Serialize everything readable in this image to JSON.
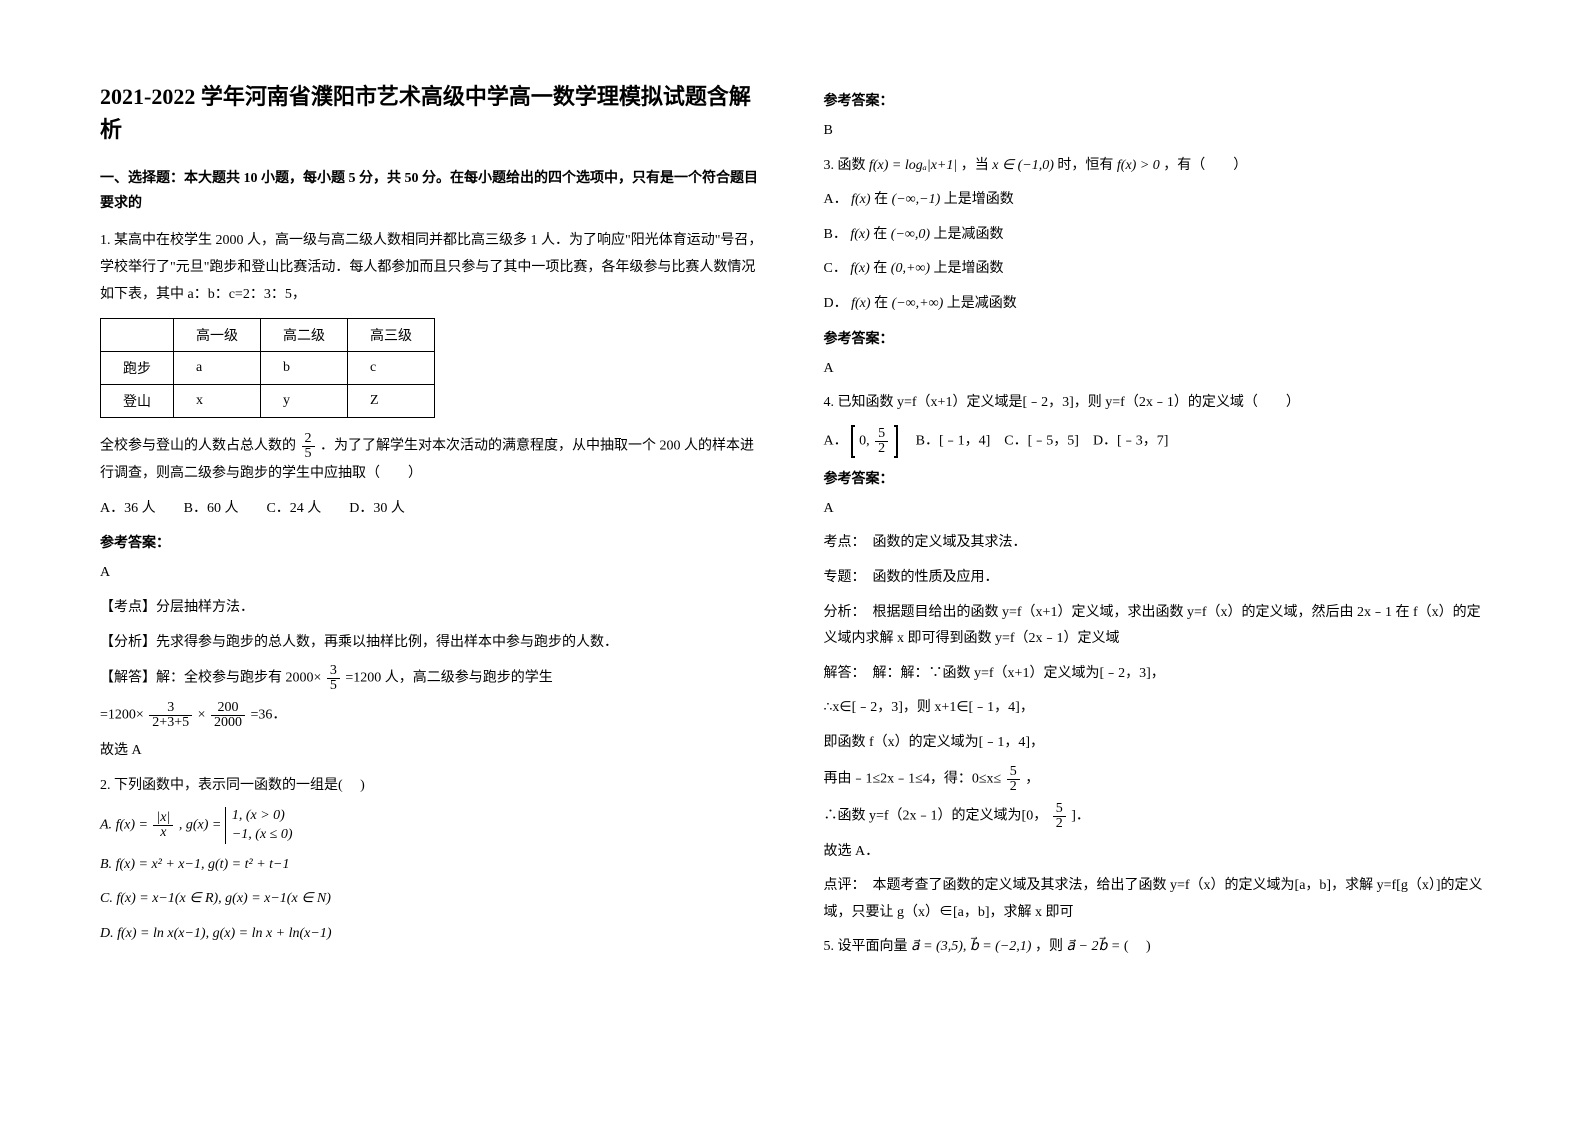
{
  "title": "2021-2022 学年河南省濮阳市艺术高级中学高一数学理模拟试题含解析",
  "sec1_hdr": "一、选择题：本大题共 10 小题，每小题 5 分，共 50 分。在每小题给出的四个选项中，只有是一个符合题目要求的",
  "q1": {
    "stem1": "1. 某高中在校学生 2000 人，高一级与高二级人数相同并都比高三级多 1 人．为了响应\"阳光体育运动\"号召，学校举行了\"元旦\"跑步和登山比赛活动．每人都参加而且只参与了其中一项比赛，各年级参与比赛人数情况如下表，其中 a：b：c=2：3：5，",
    "cols": [
      "",
      "高一级",
      "高二级",
      "高三级"
    ],
    "rows": [
      [
        "跑步",
        "a",
        "b",
        "c"
      ],
      [
        "登山",
        "x",
        "y",
        "Z"
      ]
    ],
    "stem2_a": "全校参与登山的人数占总人数的",
    "stem2_b": "．为了了解学生对本次活动的满意程度，从中抽取一个 200 人的样本进行调查，则高二级参与跑步的学生中应抽取（　　）",
    "opts": "A．36 人　　B．60 人　　C．24 人　　D．30 人",
    "ans_lbl": "参考答案：",
    "ans": "A",
    "kd": "【考点】分层抽样方法．",
    "fx": "【分析】先求得参与跑步的总人数，再乘以抽样比例，得出样本中参与跑步的人数．",
    "jd_a": "【解答】解：全校参与跑步有 2000×",
    "jd_b": "=1200 人，高二级参与跑步的学生",
    "jd_c": "=1200×",
    "jd_d": "×",
    "jd_e": "=36．",
    "jd_f": "故选 A"
  },
  "q2": {
    "stem": "2. 下列函数中，表示同一函数的一组是(　 )",
    "A1": "f(x) = ",
    "A2": ", g(x) = ",
    "B": "f(x) = x² + x−1, g(t) = t² + t−1",
    "C": "f(x) = x−1(x ∈ R), g(x) = x−1(x ∈ N)",
    "D": "f(x) = ln x(x−1), g(x) = ln x + ln(x−1)",
    "ans_lbl": "参考答案：",
    "ans": "B"
  },
  "q3": {
    "stem_a": "3. 函数",
    "fx": "f(x) = logₐ|x+1|",
    "stem_b": "，当",
    "cond": "x ∈ (−1,0)",
    "stem_c": "时，恒有",
    "gt": "f(x) > 0",
    "stem_d": "，有（　　）",
    "A_a": "A．",
    "A_b": "f(x)",
    "A_c": "在",
    "A_d": "(−∞,−1)",
    "A_e": "上是增函数",
    "B_a": "B．",
    "B_b": "f(x)",
    "B_c": "在",
    "B_d": "(−∞,0)",
    "B_e": "上是减函数",
    "C_a": "C．",
    "C_b": "f(x)",
    "C_c": "在",
    "C_d": "(0,+∞)",
    "C_e": "上是增函数",
    "D_a": "D．",
    "D_b": "f(x)",
    "D_c": "在",
    "D_d": "(−∞,+∞)",
    "D_e": "上是减函数",
    "ans_lbl": "参考答案：",
    "ans": "A"
  },
  "q4": {
    "stem": "4. 已知函数 y=f（x+1）定义域是[﹣2，3]，则 y=f（2x﹣1）的定义域（　　）",
    "optA_pre": "A．",
    "optBCD": "　B．[﹣1，4]　C．[﹣5，5]　D．[﹣3，7]",
    "ans_lbl": "参考答案：",
    "ans": "A",
    "l1": "考点：　函数的定义域及其求法．",
    "l2": "专题：　函数的性质及应用．",
    "l3": "分析：　根据题目给出的函数 y=f（x+1）定义域，求出函数 y=f（x）的定义域，然后由 2x﹣1 在 f（x）的定义域内求解 x 即可得到函数 y=f（2x﹣1）定义域",
    "l4": "解答：　解：解：∵函数 y=f（x+1）定义域为[﹣2，3]，",
    "l5": "∴x∈[﹣2，3]，则 x+1∈[﹣1，4]，",
    "l6": "即函数 f（x）的定义域为[﹣1，4]，",
    "l7a": "再由﹣1≤2x﹣1≤4，得：0≤x≤",
    "l7b": "，",
    "l8a": "∴函数 y=f（2x﹣1）的定义域为[0，",
    "l8b": "]．",
    "l9": "故选 A．",
    "l10": "点评：　本题考查了函数的定义域及其求法，给出了函数 y=f（x）的定义域为[a，b]，求解 y=f[g（x）]的定义域，只要让 g（x）∈[a，b]，求解 x 即可"
  },
  "q5": {
    "a": "5. 设平面向量",
    "b": "a⃗ = (3,5), b⃗ = (−2,1)",
    "c": "，则",
    "d": "a⃗ − 2b⃗ =",
    "e": "(　 )"
  },
  "frac": {
    "n2": "2",
    "d5": "5",
    "n3": "3",
    "n200": "200",
    "d2000": "2000",
    "d235": "2+3+5",
    "n5": "5",
    "d2": "2",
    "abs_x": "|x|",
    "den_x": "x",
    "p1": "1, (x > 0)",
    "p2": "−1, (x ≤ 0)",
    "zero": "0"
  }
}
